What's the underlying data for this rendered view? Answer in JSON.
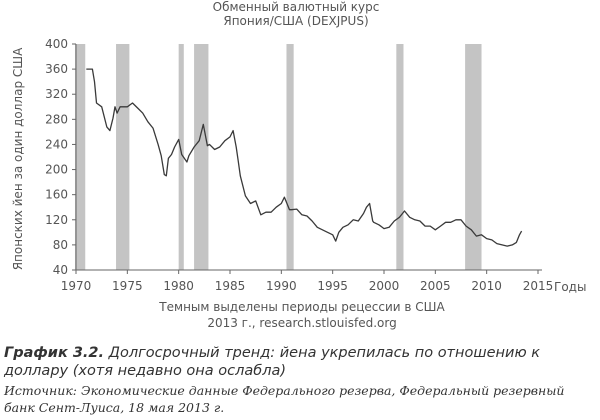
{
  "chart_data": {
    "type": "line",
    "title": "Обменный валютный курс",
    "subtitle": "Япония/США (DEXJPUS)",
    "ylabel": "Японских йен за один доллар США",
    "xlabel": "Годы",
    "ylim": [
      40,
      400
    ],
    "xlim": [
      1970,
      2015
    ],
    "y_ticks": [
      40,
      80,
      120,
      160,
      200,
      240,
      280,
      320,
      360,
      400
    ],
    "x_ticks": [
      1970,
      1975,
      1980,
      1985,
      1990,
      1995,
      2000,
      2005,
      2010,
      2015
    ],
    "grid": false,
    "recession_note": "Темным выделены периоды рецессии в США",
    "source_note": "2013 г., research.stlouisfed.org",
    "recessions": [
      [
        1969.9,
        1970.9
      ],
      [
        1973.9,
        1975.2
      ],
      [
        1980.0,
        1980.5
      ],
      [
        1981.5,
        1982.9
      ],
      [
        1990.5,
        1991.2
      ],
      [
        2001.2,
        2001.9
      ],
      [
        2007.9,
        2009.5
      ]
    ],
    "series": [
      {
        "x": [
          1971.0,
          1971.6,
          1971.8,
          1972.0,
          1972.5,
          1973.0,
          1973.3,
          1973.6,
          1973.8,
          1974.0,
          1974.3,
          1974.6,
          1975.0,
          1975.5,
          1976.0,
          1976.5,
          1977.0,
          1977.5,
          1978.0,
          1978.3,
          1978.6,
          1978.8,
          1979.0,
          1979.3,
          1979.6,
          1980.0,
          1980.3,
          1980.8,
          1981.0,
          1981.5,
          1982.0,
          1982.4,
          1982.8,
          1983.0,
          1983.5,
          1984.0,
          1984.5,
          1985.0,
          1985.3,
          1985.6,
          1985.8,
          1986.0,
          1986.5,
          1987.0,
          1987.5,
          1988.0,
          1988.5,
          1989.0,
          1989.5,
          1990.0,
          1990.3,
          1990.8,
          1991.0,
          1991.5,
          1992.0,
          1992.5,
          1993.0,
          1993.5,
          1994.0,
          1994.5,
          1995.0,
          1995.3,
          1995.6,
          1996.0,
          1996.5,
          1997.0,
          1997.5,
          1998.0,
          1998.3,
          1998.6,
          1998.9,
          1999.0,
          1999.5,
          2000.0,
          2000.5,
          2001.0,
          2001.5,
          2002.0,
          2002.5,
          2003.0,
          2003.5,
          2004.0,
          2004.5,
          2005.0,
          2005.5,
          2006.0,
          2006.5,
          2007.0,
          2007.5,
          2008.0,
          2008.5,
          2009.0,
          2009.5,
          2010.0,
          2010.5,
          2011.0,
          2011.5,
          2012.0,
          2012.5,
          2012.9,
          2013.2,
          2013.4
        ],
        "values": [
          360,
          360,
          340,
          306,
          300,
          268,
          262,
          282,
          300,
          290,
          300,
          300,
          300,
          306,
          298,
          290,
          276,
          266,
          240,
          222,
          192,
          190,
          218,
          224,
          236,
          248,
          224,
          212,
          222,
          236,
          246,
          272,
          238,
          240,
          232,
          236,
          246,
          252,
          262,
          236,
          214,
          190,
          158,
          146,
          150,
          128,
          132,
          132,
          140,
          146,
          156,
          136,
          136,
          137,
          128,
          126,
          118,
          108,
          104,
          100,
          96,
          86,
          100,
          108,
          112,
          120,
          118,
          130,
          140,
          146,
          118,
          116,
          112,
          106,
          108,
          118,
          124,
          134,
          124,
          120,
          118,
          110,
          110,
          104,
          110,
          116,
          116,
          120,
          120,
          110,
          104,
          94,
          96,
          90,
          88,
          82,
          80,
          78,
          80,
          84,
          96,
          102
        ]
      }
    ]
  },
  "figure": {
    "label": "График 3.2.",
    "title": "Долгосрочный тренд: йена укрепилась по отношению к доллару (хотя недавно она ослабла)",
    "source_label": "Источник:",
    "source_text": "Экономические данные Федерального резерва, Федеральный резервный банк Сент-Луиса, 18 мая 2013 г."
  }
}
